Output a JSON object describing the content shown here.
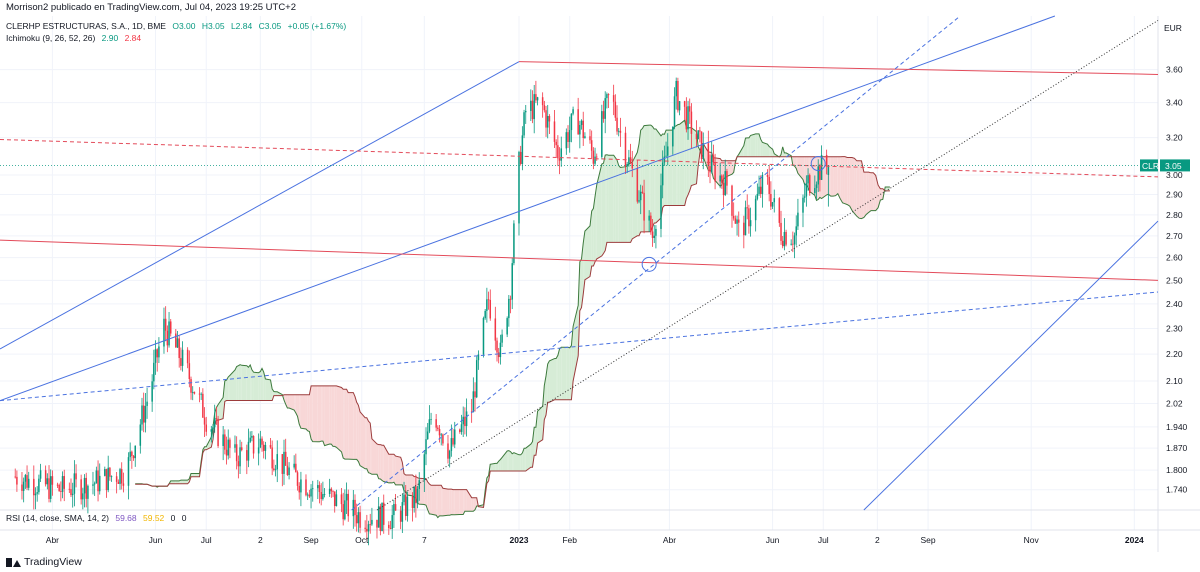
{
  "header": {
    "text": "Morrison2 publicado en TradingView.com, Jul 04, 2023 19:25 UTC+2"
  },
  "legend": {
    "symbol": "CLERHP ESTRUCTURAS, S.A., 1D, BME",
    "open": "O3.00",
    "high": "H3.05",
    "low": "L2.84",
    "close": "C3.05",
    "change": "+0.05 (+1.67%)",
    "ichimoku_label": "Ichimoku (9, 26, 52, 26)",
    "ichimoku_v1": "2.90",
    "ichimoku_v2": "2.84",
    "rsi_label": "RSI (14, close, SMA, 14, 2)",
    "rsi_v1": "59.68",
    "rsi_v2": "59.52",
    "rsi_v3": "0",
    "rsi_v4": "0"
  },
  "footer": {
    "brand": "TradingView"
  },
  "colors": {
    "up": "#089981",
    "down": "#f23645",
    "trend_blue": "#4a72e0",
    "trend_red": "#e34b5a",
    "cloud_green": "#d6ecd6",
    "cloud_red": "#f8d7d7",
    "span_green": "#3d7a3d",
    "span_red": "#9c3c3c"
  },
  "chart_data": {
    "type": "candlestick",
    "currency": "EUR",
    "scale": "log",
    "last_price": "3.05",
    "last_symbol": "CLR",
    "ylim": [
      1.68,
      3.95
    ],
    "y_ticks": [
      "3.60",
      "3.40",
      "3.20",
      "3.00",
      "2.90",
      "2.80",
      "2.70",
      "2.60",
      "2.50",
      "2.40",
      "2.30",
      "2.20",
      "2.10",
      "2.02",
      "1.940",
      "1.870",
      "1.800",
      "1.740"
    ],
    "x_ticks": [
      "Abr",
      "Jun",
      "Jul",
      "2",
      "Sep",
      "Oct",
      "7",
      "2023",
      "Feb",
      "Abr",
      "Jun",
      "Jul",
      "2",
      "Sep",
      "Nov",
      "2024"
    ],
    "x_tick_dates": [
      "2022-04-01",
      "2022-06-01",
      "2022-07-01",
      "2022-08-02",
      "2022-09-01",
      "2022-10-01",
      "2022-11-07",
      "2023-01-02",
      "2023-02-01",
      "2023-04-01",
      "2023-06-01",
      "2023-07-01",
      "2023-08-02",
      "2023-09-01",
      "2023-11-01",
      "2024-01-01"
    ],
    "xlim": [
      "2022-03-01",
      "2024-01-15"
    ],
    "anchors": [
      [
        "2022-03-10",
        1.78
      ],
      [
        "2022-04-05",
        1.74
      ],
      [
        "2022-04-25",
        1.76
      ],
      [
        "2022-05-15",
        1.8
      ],
      [
        "2022-05-28",
        2.05
      ],
      [
        "2022-06-06",
        2.31
      ],
      [
        "2022-06-18",
        2.16
      ],
      [
        "2022-07-01",
        1.97
      ],
      [
        "2022-07-18",
        1.84
      ],
      [
        "2022-08-02",
        1.89
      ],
      [
        "2022-08-22",
        1.78
      ],
      [
        "2022-09-15",
        1.71
      ],
      [
        "2022-10-01",
        1.66
      ],
      [
        "2022-10-20",
        1.66
      ],
      [
        "2022-11-03",
        1.72
      ],
      [
        "2022-11-12",
        2.0
      ],
      [
        "2022-11-22",
        1.86
      ],
      [
        "2022-12-05",
        2.0
      ],
      [
        "2022-12-15",
        2.42
      ],
      [
        "2022-12-22",
        2.2
      ],
      [
        "2022-12-28",
        2.48
      ],
      [
        "2023-01-02",
        3.05
      ],
      [
        "2023-01-06",
        3.35
      ],
      [
        "2023-01-15",
        3.4
      ],
      [
        "2023-01-25",
        3.12
      ],
      [
        "2023-02-05",
        3.32
      ],
      [
        "2023-02-15",
        3.1
      ],
      [
        "2023-02-25",
        3.45
      ],
      [
        "2023-03-05",
        3.15
      ],
      [
        "2023-03-15",
        2.88
      ],
      [
        "2023-03-22",
        2.7
      ],
      [
        "2023-03-30",
        3.1
      ],
      [
        "2023-04-05",
        3.45
      ],
      [
        "2023-04-12",
        3.3
      ],
      [
        "2023-04-25",
        3.05
      ],
      [
        "2023-05-05",
        2.95
      ],
      [
        "2023-05-12",
        2.72
      ],
      [
        "2023-05-20",
        2.82
      ],
      [
        "2023-05-28",
        2.98
      ],
      [
        "2023-06-06",
        2.72
      ],
      [
        "2023-06-14",
        2.7
      ],
      [
        "2023-06-22",
        2.96
      ],
      [
        "2023-07-01",
        3.05
      ],
      [
        "2023-07-04",
        3.05
      ]
    ],
    "tenkan_at_end": 2.9,
    "kijun_at_end": 2.84,
    "rsi": [
      59.68,
      59.52
    ]
  }
}
